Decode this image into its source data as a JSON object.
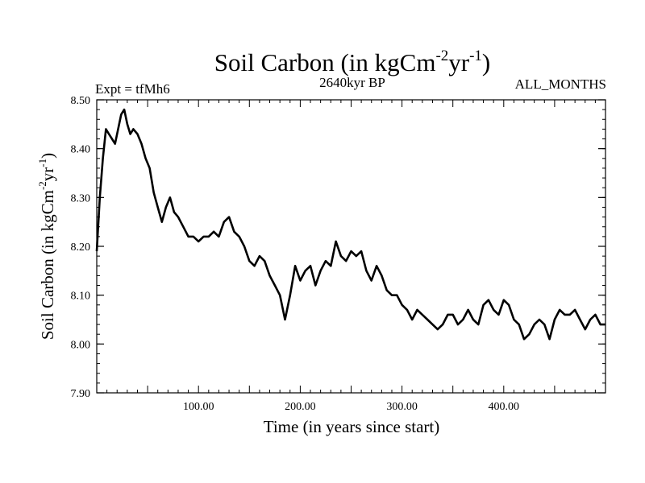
{
  "chart_data": {
    "type": "line",
    "title": "Soil Carbon (in kgCm-2yr-1)",
    "title_main": "Soil Carbon (in kgCm",
    "title_sup1": "-2",
    "title_mid": "yr",
    "title_sup2": "-1",
    "title_end": ")",
    "subtitle": "2640kyr BP",
    "left_label": "Expt = tfMh6",
    "right_label": "ALL_MONTHS",
    "xlabel": "Time (in years since start)",
    "ylabel_main": "Soil Carbon (in kgCm",
    "ylabel_sup1": "-2",
    "ylabel_mid": "yr",
    "ylabel_sup2": "-1",
    "ylabel_end": ")",
    "xlim": [
      0,
      500
    ],
    "ylim": [
      7.9,
      8.5
    ],
    "x_ticks": [
      100,
      200,
      300,
      400
    ],
    "x_tick_labels": [
      "100.00",
      "200.00",
      "300.00",
      "400.00"
    ],
    "y_ticks": [
      7.9,
      8.0,
      8.1,
      8.2,
      8.3,
      8.4,
      8.5
    ],
    "y_tick_labels": [
      "7.90",
      "8.00",
      "8.10",
      "8.20",
      "8.30",
      "8.40",
      "8.50"
    ],
    "grid": false,
    "series": [
      {
        "name": "Soil Carbon",
        "color": "#000000",
        "x": [
          0,
          3,
          6,
          9,
          12,
          15,
          18,
          21,
          24,
          27,
          30,
          33,
          36,
          40,
          44,
          48,
          52,
          56,
          60,
          64,
          68,
          72,
          76,
          80,
          85,
          90,
          95,
          100,
          105,
          110,
          115,
          120,
          125,
          130,
          135,
          140,
          145,
          150,
          155,
          160,
          165,
          170,
          175,
          180,
          185,
          190,
          195,
          200,
          205,
          210,
          215,
          220,
          225,
          230,
          235,
          240,
          245,
          250,
          255,
          260,
          265,
          270,
          275,
          280,
          285,
          290,
          295,
          300,
          305,
          310,
          315,
          320,
          325,
          330,
          335,
          340,
          345,
          350,
          355,
          360,
          365,
          370,
          375,
          380,
          385,
          390,
          395,
          400,
          405,
          410,
          415,
          420,
          425,
          430,
          435,
          440,
          445,
          450,
          455,
          460,
          465,
          470,
          475,
          480,
          485,
          490,
          495,
          500
        ],
        "y": [
          8.19,
          8.3,
          8.38,
          8.44,
          8.43,
          8.42,
          8.41,
          8.44,
          8.47,
          8.48,
          8.45,
          8.43,
          8.44,
          8.43,
          8.41,
          8.38,
          8.36,
          8.31,
          8.28,
          8.25,
          8.28,
          8.3,
          8.27,
          8.26,
          8.24,
          8.22,
          8.22,
          8.21,
          8.22,
          8.22,
          8.23,
          8.22,
          8.25,
          8.26,
          8.23,
          8.22,
          8.2,
          8.17,
          8.16,
          8.18,
          8.17,
          8.14,
          8.12,
          8.1,
          8.05,
          8.1,
          8.16,
          8.13,
          8.15,
          8.16,
          8.12,
          8.15,
          8.17,
          8.16,
          8.21,
          8.18,
          8.17,
          8.19,
          8.18,
          8.19,
          8.15,
          8.13,
          8.16,
          8.14,
          8.11,
          8.1,
          8.1,
          8.08,
          8.07,
          8.05,
          8.07,
          8.06,
          8.05,
          8.04,
          8.03,
          8.04,
          8.06,
          8.06,
          8.04,
          8.05,
          8.07,
          8.05,
          8.04,
          8.08,
          8.09,
          8.07,
          8.06,
          8.09,
          8.08,
          8.05,
          8.04,
          8.01,
          8.02,
          8.04,
          8.05,
          8.04,
          8.01,
          8.05,
          8.07,
          8.06,
          8.06,
          8.07,
          8.05,
          8.03,
          8.05,
          8.06,
          8.04,
          8.04
        ]
      }
    ]
  }
}
